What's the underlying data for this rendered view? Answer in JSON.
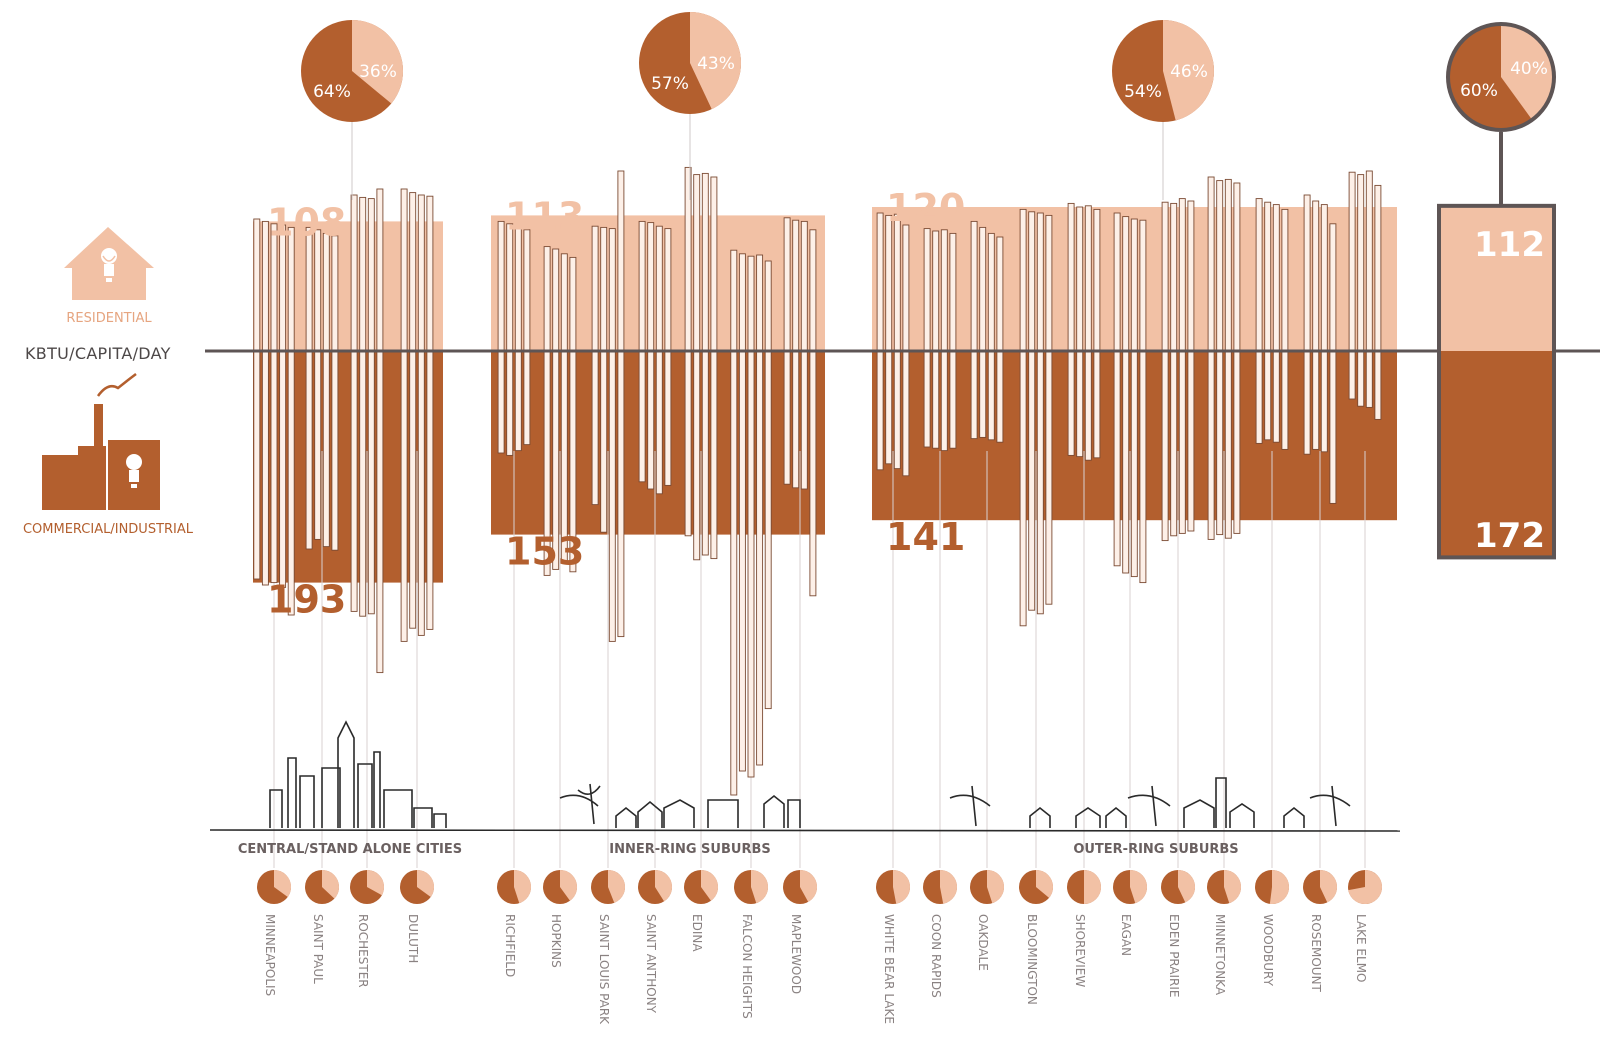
{
  "axis_label": "KBTU/CAPITA/DAY",
  "sectors": {
    "residential": "RESIDENTIAL",
    "commercial": "COMMERCIAL/INDUSTRIAL"
  },
  "colors": {
    "residential": "#f2c1a5",
    "commercial": "#b35f2e",
    "outline": "#5e5555",
    "label": "#8a8282"
  },
  "icons": [
    "house-bulb-icon",
    "factory-bulb-icon",
    "city-skyline-icon",
    "inner-suburb-skyline-icon",
    "outer-suburb-skyline-icon"
  ],
  "chart_data": {
    "type": "bar",
    "unit": "KBTU/CAPITA/DAY",
    "groups": [
      {
        "label": "CENTRAL/STAND ALONE CITIES",
        "residential_avg": 108,
        "commercial_avg": 193,
        "residential_pct": "36%",
        "commercial_pct": "64%"
      },
      {
        "label": "INNER-RING SUBURBS",
        "residential_avg": 113,
        "commercial_avg": 153,
        "residential_pct": "43%",
        "commercial_pct": "57%"
      },
      {
        "label": "OUTER-RING SUBURBS",
        "residential_avg": 120,
        "commercial_avg": 141,
        "residential_pct": "46%",
        "commercial_pct": "54%"
      }
    ],
    "overall": {
      "residential": 112,
      "commercial": 172,
      "residential_pct": "40%",
      "commercial_pct": "60%"
    },
    "cities": [
      {
        "name": "MINNEAPOLIS",
        "group": 0,
        "residential_share": 0.35,
        "residential": [
          110,
          108,
          106,
          105,
          103
        ],
        "commercial": [
          190,
          195,
          193,
          197,
          220
        ]
      },
      {
        "name": "SAINT PAUL",
        "group": 0,
        "residential_share": 0.37,
        "residential": [
          103,
          101,
          98,
          96
        ],
        "commercial": [
          165,
          157,
          163,
          166
        ]
      },
      {
        "name": "ROCHESTER",
        "group": 0,
        "residential_share": 0.33,
        "residential": [
          130,
          128,
          127,
          135
        ],
        "commercial": [
          217,
          221,
          219,
          268
        ]
      },
      {
        "name": "DULUTH",
        "group": 0,
        "residential_share": 0.35,
        "residential": [
          135,
          132,
          130,
          129
        ],
        "commercial": [
          242,
          231,
          237,
          232
        ]
      },
      {
        "name": "RICHFIELD",
        "group": 1,
        "residential_share": 0.45,
        "residential": [
          108,
          106,
          103,
          101
        ],
        "commercial": [
          85,
          87,
          83,
          78
        ]
      },
      {
        "name": "HOPKINS",
        "group": 1,
        "residential_share": 0.4,
        "residential": [
          87,
          85,
          81,
          78
        ],
        "commercial": [
          187,
          182,
          176,
          184
        ]
      },
      {
        "name": "SAINT LOUIS PARK",
        "group": 1,
        "residential_share": 0.44,
        "residential": [
          104,
          103,
          102,
          150
        ],
        "commercial": [
          128,
          151,
          242,
          238
        ]
      },
      {
        "name": "SAINT ANTHONY",
        "group": 1,
        "residential_share": 0.41,
        "residential": [
          108,
          107,
          104,
          102
        ],
        "commercial": [
          109,
          115,
          119,
          112
        ]
      },
      {
        "name": "EDINA",
        "group": 1,
        "residential_share": 0.4,
        "residential": [
          153,
          147,
          148,
          145
        ],
        "commercial": [
          154,
          174,
          170,
          173
        ]
      },
      {
        "name": "FALCON HEIGHTS",
        "group": 1,
        "residential_share": 0.45,
        "residential": [
          84,
          81,
          79,
          80,
          75
        ],
        "commercial": [
          370,
          350,
          355,
          345,
          298
        ]
      },
      {
        "name": "MAPLEWOOD",
        "group": 1,
        "residential_share": 0.42,
        "residential": [
          111,
          109,
          108,
          101
        ],
        "commercial": [
          111,
          114,
          115,
          204
        ]
      },
      {
        "name": "WHITE BEAR LAKE",
        "group": 2,
        "residential_share": 0.47,
        "residential": [
          115,
          113,
          114,
          105
        ],
        "commercial": [
          99,
          94,
          98,
          104
        ]
      },
      {
        "name": "COON RAPIDS",
        "group": 2,
        "residential_share": 0.47,
        "residential": [
          102,
          100,
          101,
          98
        ],
        "commercial": [
          80,
          81,
          83,
          81
        ]
      },
      {
        "name": "OAKDALE",
        "group": 2,
        "residential_share": 0.45,
        "residential": [
          108,
          103,
          98,
          95
        ],
        "commercial": [
          73,
          72,
          74,
          76
        ]
      },
      {
        "name": "BLOOMINGTON",
        "group": 2,
        "residential_share": 0.36,
        "residential": [
          118,
          116,
          115,
          113
        ],
        "commercial": [
          229,
          216,
          219,
          211
        ]
      },
      {
        "name": "SHOREVIEW",
        "group": 2,
        "residential_share": 0.5,
        "residential": [
          123,
          120,
          121,
          118
        ],
        "commercial": [
          87,
          88,
          91,
          89
        ]
      },
      {
        "name": "EAGAN",
        "group": 2,
        "residential_share": 0.45,
        "residential": [
          115,
          112,
          110,
          109
        ],
        "commercial": [
          179,
          185,
          188,
          193
        ]
      },
      {
        "name": "EDEN PRAIRIE",
        "group": 2,
        "residential_share": 0.43,
        "residential": [
          124,
          123,
          127,
          125
        ],
        "commercial": [
          158,
          154,
          152,
          150
        ]
      },
      {
        "name": "MINNETONKA",
        "group": 2,
        "residential_share": 0.45,
        "residential": [
          145,
          142,
          143,
          140
        ],
        "commercial": [
          157,
          153,
          156,
          152
        ]
      },
      {
        "name": "WOODBURY",
        "group": 2,
        "residential_share": 0.52,
        "residential": [
          127,
          124,
          122,
          118
        ],
        "commercial": [
          77,
          74,
          76,
          82
        ]
      },
      {
        "name": "ROSEMOUNT",
        "group": 2,
        "residential_share": 0.43,
        "residential": [
          130,
          125,
          122,
          106
        ],
        "commercial": [
          86,
          82,
          84,
          127
        ]
      },
      {
        "name": "LAKE ELMO",
        "group": 2,
        "residential_share": 0.72,
        "residential": [
          149,
          147,
          150,
          138
        ],
        "commercial": [
          40,
          46,
          47,
          57
        ]
      }
    ]
  }
}
